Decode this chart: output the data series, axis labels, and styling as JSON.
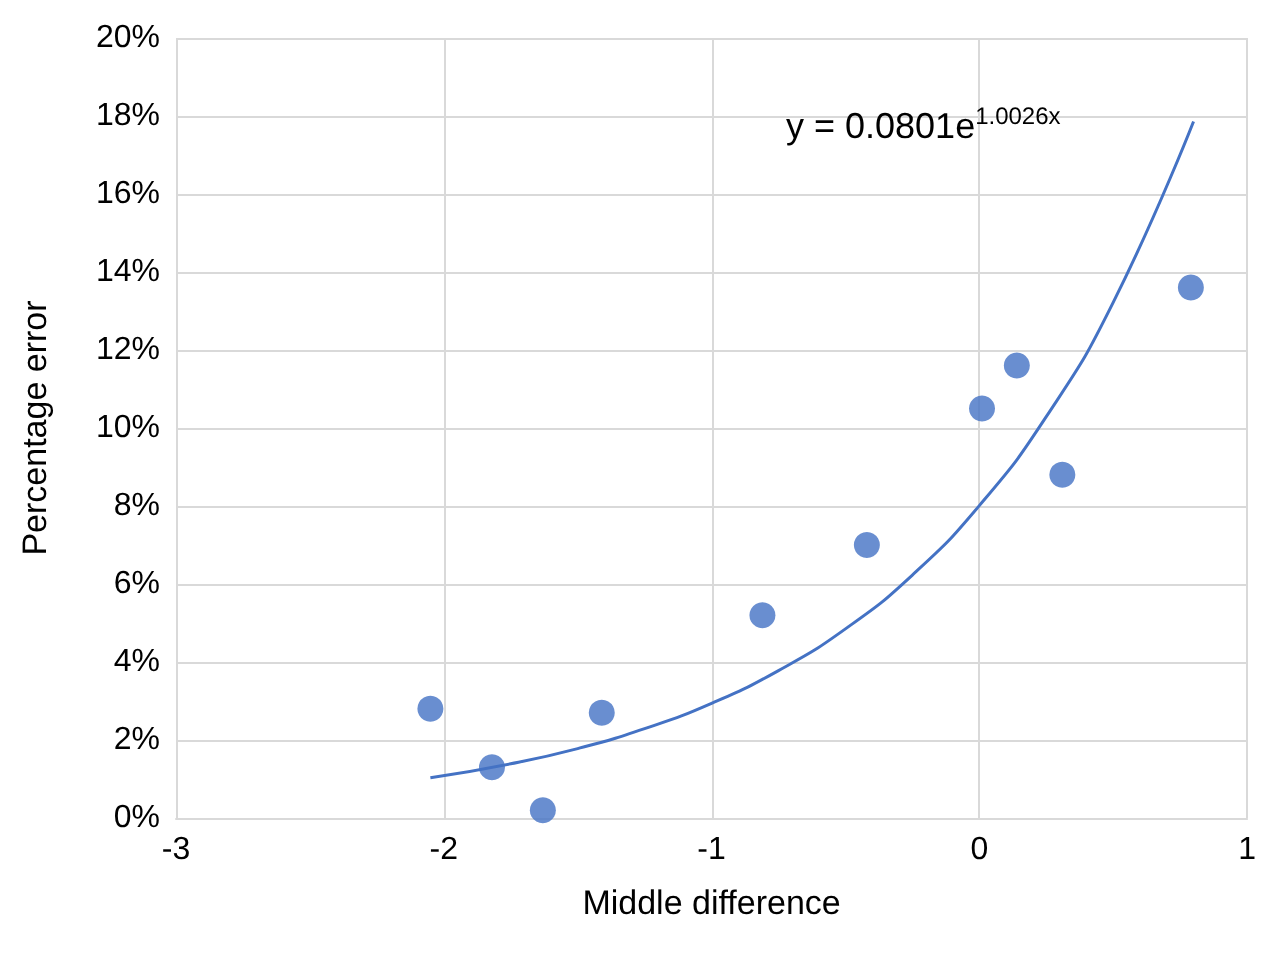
{
  "chart_data": {
    "type": "scatter",
    "xlabel": "Middle difference",
    "ylabel": "Percentage error",
    "annotations": [
      "y = 0.0801e$^{1.0026x}$"
    ],
    "series": [
      {
        "color": "#4472c4",
        "marker": "circle",
        "x": [
          -2.05,
          -1.82,
          -1.63,
          -1.41,
          -0.81,
          -0.42,
          0.01,
          0.14,
          0.31,
          0.79
        ],
        "values": [
          2.8,
          1.3,
          0.2,
          2.7,
          5.2,
          7.0,
          10.5,
          11.6,
          8.8,
          13.6
        ]
      },
      {
        "type": "line",
        "color": "#4472c4",
        "marker": "none",
        "x": [
          -2.05,
          -1.75,
          -1.5,
          -1.25,
          -1,
          -0.75,
          -0.5,
          -0.25,
          0,
          0.25,
          0.5,
          0.8
        ],
        "values": [
          1.03,
          1.39,
          1.78,
          2.29,
          2.94,
          3.78,
          4.85,
          6.23,
          8.01,
          10.29,
          13.22,
          17.86
        ]
      }
    ],
    "xlim": [
      -3,
      1
    ],
    "xticks": [
      -3,
      -2,
      -1,
      0,
      1
    ],
    "ylim": [
      0,
      20
    ],
    "yticks": [
      {
        "value": 0,
        "label": "0%"
      },
      {
        "value": 2,
        "label": "2%"
      },
      {
        "value": 4,
        "label": "4%"
      },
      {
        "value": 6,
        "label": "6%"
      },
      {
        "value": 8,
        "label": "8%"
      },
      {
        "value": 10,
        "label": "10%"
      },
      {
        "value": 12,
        "label": "12%"
      },
      {
        "value": 14,
        "label": "14%"
      },
      {
        "value": 16,
        "label": "16%"
      },
      {
        "value": 18,
        "label": "18%"
      },
      {
        "value": 20,
        "label": "20%"
      }
    ],
    "grid": true,
    "line_style": "solid"
  }
}
